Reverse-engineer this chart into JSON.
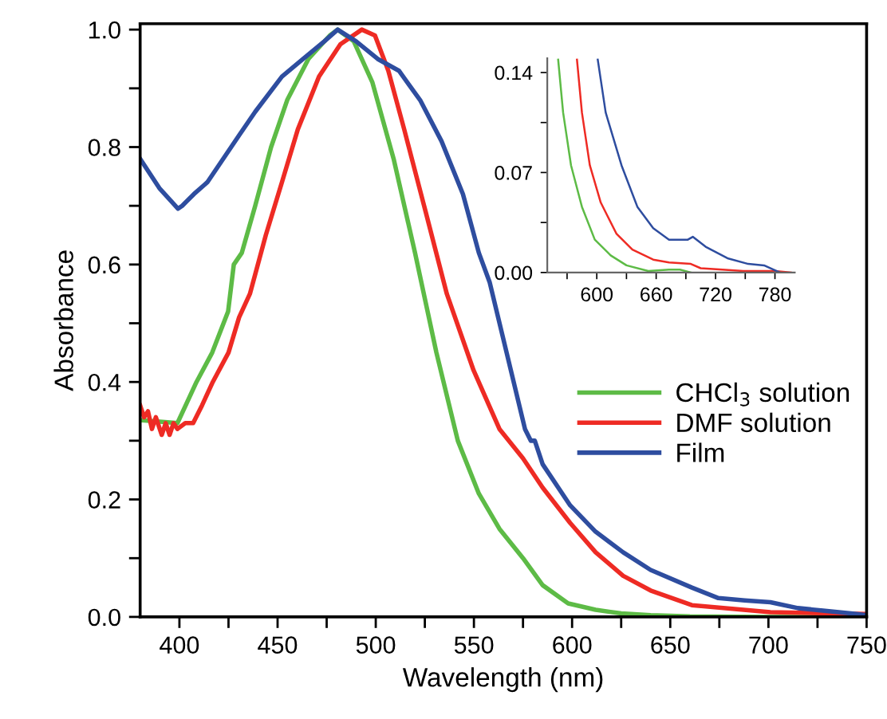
{
  "chart_data": [
    {
      "type": "line",
      "xlabel": "Wavelength (nm)",
      "ylabel": "Absorbance",
      "xlim": [
        380,
        750
      ],
      "ylim": [
        0,
        1.01
      ],
      "xticks": [
        {
          "value": 400,
          "label": "400"
        },
        {
          "value": 425,
          "label": null
        },
        {
          "value": 450,
          "label": "450"
        },
        {
          "value": 475,
          "label": null
        },
        {
          "value": 500,
          "label": "500"
        },
        {
          "value": 525,
          "label": null
        },
        {
          "value": 550,
          "label": "550"
        },
        {
          "value": 575,
          "label": null
        },
        {
          "value": 600,
          "label": "600"
        },
        {
          "value": 625,
          "label": null
        },
        {
          "value": 650,
          "label": "650"
        },
        {
          "value": 675,
          "label": null
        },
        {
          "value": 700,
          "label": "700"
        },
        {
          "value": 725,
          "label": null
        },
        {
          "value": 750,
          "label": "750"
        }
      ],
      "yticks": [
        {
          "value": 0,
          "label": "0.0"
        },
        {
          "value": 0.1,
          "label": null
        },
        {
          "value": 0.2,
          "label": "0.2"
        },
        {
          "value": 0.3,
          "label": null
        },
        {
          "value": 0.4,
          "label": "0.4"
        },
        {
          "value": 0.5,
          "label": null
        },
        {
          "value": 0.6,
          "label": "0.6"
        },
        {
          "value": 0.7,
          "label": null
        },
        {
          "value": 0.8,
          "label": "0.8"
        },
        {
          "value": 0.9,
          "label": null
        },
        {
          "value": 1.0,
          "label": "1.0"
        }
      ],
      "grid": false,
      "legend": "lower right",
      "line_style": "solid",
      "marker": "none",
      "series": [
        {
          "name": "CHCl$_{3}$ solution",
          "color": "#5dbb46",
          "x": [
            380,
            399,
            408.7,
            416.7,
            424.8,
            427.7,
            431.8,
            438.6,
            446.7,
            454.9,
            465.7,
            476.6,
            480.6,
            488.8,
            498.3,
            509.1,
            520,
            530.9,
            541.8,
            552.5,
            563,
            575,
            585,
            598,
            612,
            625,
            640,
            660,
            700,
            750
          ],
          "values": [
            0.335,
            0.33,
            0.4,
            0.45,
            0.52,
            0.6,
            0.62,
            0.7,
            0.8,
            0.88,
            0.95,
            0.99,
            1.0,
            0.98,
            0.91,
            0.78,
            0.62,
            0.45,
            0.3,
            0.21,
            0.15,
            0.1,
            0.054,
            0.023,
            0.012,
            0.006,
            0.003,
            0.001,
            0.0,
            0.0
          ]
        },
        {
          "name": "DMF solution",
          "color": "#ee2b24",
          "x": [
            380,
            382,
            384,
            386,
            388,
            391,
            393,
            395,
            397,
            399,
            403,
            407,
            411.5,
            417,
            425,
            430.4,
            435.9,
            444,
            452.2,
            460.3,
            471.1,
            482,
            492.9,
            499.6,
            506.4,
            514.5,
            525.4,
            536.2,
            549.8,
            563,
            575,
            585,
            599,
            612,
            626,
            640,
            661,
            701,
            750
          ],
          "values": [
            0.36,
            0.34,
            0.35,
            0.32,
            0.34,
            0.31,
            0.33,
            0.31,
            0.33,
            0.32,
            0.33,
            0.33,
            0.36,
            0.4,
            0.45,
            0.51,
            0.55,
            0.65,
            0.74,
            0.83,
            0.92,
            0.975,
            1.0,
            0.99,
            0.93,
            0.83,
            0.69,
            0.55,
            0.42,
            0.32,
            0.27,
            0.22,
            0.16,
            0.11,
            0.07,
            0.045,
            0.02,
            0.008,
            0.005
          ]
        },
        {
          "name": "Film",
          "color": "#2e4d9f",
          "x": [
            380,
            389.8,
            399.3,
            401.4,
            407.4,
            414.2,
            422.3,
            430.4,
            438.6,
            452.2,
            463,
            473.8,
            480.6,
            490,
            501,
            511.8,
            522.6,
            533.5,
            544.4,
            552.5,
            558,
            568.8,
            576,
            579,
            581,
            585,
            599,
            612,
            626,
            640,
            661,
            674.5,
            688,
            701,
            715,
            742,
            750
          ],
          "values": [
            0.78,
            0.73,
            0.695,
            0.7,
            0.72,
            0.74,
            0.78,
            0.82,
            0.86,
            0.92,
            0.95,
            0.98,
            1.0,
            0.98,
            0.95,
            0.93,
            0.88,
            0.81,
            0.72,
            0.62,
            0.57,
            0.42,
            0.32,
            0.3,
            0.3,
            0.26,
            0.19,
            0.145,
            0.11,
            0.08,
            0.05,
            0.032,
            0.028,
            0.025,
            0.015,
            0.006,
            0.003
          ]
        }
      ]
    },
    {
      "type": "line",
      "xlim": [
        550,
        800
      ],
      "ylim": [
        0,
        0.15
      ],
      "xticks": [
        {
          "value": 570,
          "label": null
        },
        {
          "value": 600,
          "label": "600"
        },
        {
          "value": 630,
          "label": null
        },
        {
          "value": 660,
          "label": "660"
        },
        {
          "value": 690,
          "label": null
        },
        {
          "value": 720,
          "label": "720"
        },
        {
          "value": 750,
          "label": null
        },
        {
          "value": 780,
          "label": "780"
        }
      ],
      "yticks": [
        {
          "value": 0,
          "label": "0.00"
        },
        {
          "value": 0.035,
          "label": null
        },
        {
          "value": 0.07,
          "label": "0.07"
        },
        {
          "value": 0.105,
          "label": null
        },
        {
          "value": 0.14,
          "label": "0.14"
        }
      ],
      "grid": false,
      "line_style": "solid",
      "marker": "none",
      "series": [
        {
          "color": "#5dbb46",
          "x": [
            561,
            566,
            574,
            585,
            598,
            614,
            630,
            652,
            673,
            684,
            695
          ],
          "values": [
            0.149,
            0.112,
            0.075,
            0.046,
            0.023,
            0.012,
            0.005,
            0.001,
            0.002,
            0.002,
            0.0
          ]
        },
        {
          "color": "#ee2b24",
          "x": [
            580,
            585,
            593,
            604,
            620,
            636,
            657,
            673,
            695,
            705,
            727,
            748,
            780,
            796
          ],
          "values": [
            0.149,
            0.112,
            0.075,
            0.049,
            0.027,
            0.016,
            0.009,
            0.007,
            0.006,
            0.003,
            0.002,
            0.001,
            0.001,
            0.0
          ]
        },
        {
          "color": "#2e4d9f",
          "x": [
            601,
            609,
            625,
            641,
            657,
            673,
            692,
            697,
            710,
            732,
            753,
            769,
            785
          ],
          "values": [
            0.149,
            0.112,
            0.075,
            0.046,
            0.031,
            0.023,
            0.023,
            0.025,
            0.018,
            0.01,
            0.006,
            0.005,
            0.0
          ]
        }
      ]
    }
  ]
}
